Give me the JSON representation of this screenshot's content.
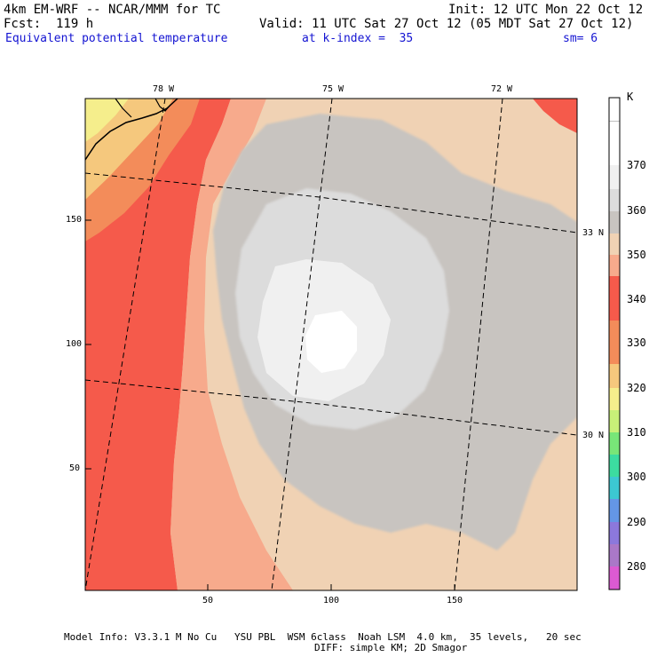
{
  "header": {
    "line1_left": "4km EM-WRF -- NCAR/MMM for TC",
    "line1_right": "Init: 12 UTC Mon 22 Oct 12",
    "line2_left": "Fcst:  119 h",
    "line2_right": "Valid: 11 UTC Sat 27 Oct 12 (05 MDT Sat 27 Oct 12)",
    "line3_left": "Equivalent potential temperature",
    "line3_mid": "at k-index =  35",
    "line3_right": "sm= 6"
  },
  "map": {
    "top_lon_labels": [
      "78 W",
      "75 W",
      "72 W"
    ],
    "right_lat_labels": [
      "33 N",
      "30 N"
    ],
    "left_y_ticks": [
      "150",
      "100",
      "50"
    ],
    "bottom_x_ticks": [
      "50",
      "100",
      "150"
    ]
  },
  "colorbar": {
    "unit": "K",
    "levels": [
      "370",
      "360",
      "350",
      "340",
      "330",
      "320",
      "310",
      "300",
      "290",
      "280"
    ],
    "colors": [
      "#ffffff",
      "#f0f0f0",
      "#dcdcdc",
      "#c8c4c0",
      "#f0d2b4",
      "#f7aa8c",
      "#f55a4b",
      "#f38c5a",
      "#f5c87d",
      "#f5ee8c",
      "#c8f078",
      "#78e678",
      "#3cdca0",
      "#3cc8d2",
      "#6496e6",
      "#8c78dc",
      "#aa78c8",
      "#dc5ad2"
    ]
  },
  "footer": {
    "line1": "Model Info: V3.3.1 M No Cu   YSU PBL  WSM 6class  Noah LSM  4.0 km,  35 levels,   20 sec",
    "line2": "DIFF: simple KM; 2D Smagor"
  }
}
